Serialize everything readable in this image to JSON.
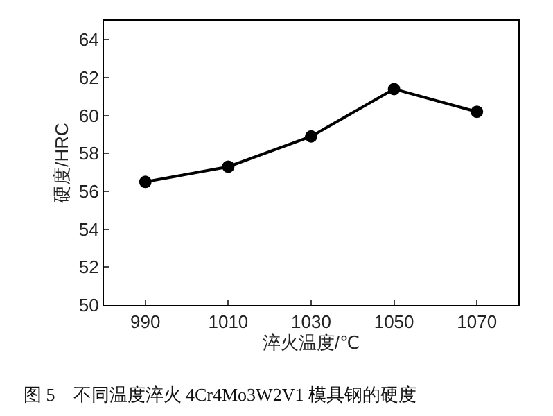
{
  "chart_data": {
    "type": "line",
    "xlabel": "淬火温度/℃",
    "ylabel": "硬度/HRC",
    "x": [
      990,
      1010,
      1030,
      1050,
      1070
    ],
    "series": [
      {
        "color": "#000000",
        "values": [
          56.5,
          57.3,
          58.9,
          61.4,
          60.2
        ]
      }
    ],
    "xlim": [
      980,
      1080
    ],
    "xticks": [
      990,
      1010,
      1030,
      1050,
      1070
    ],
    "ylim": [
      50,
      65
    ],
    "yticks": [
      50,
      52,
      54,
      56,
      58,
      60,
      62,
      64
    ],
    "marker": "circle",
    "line_style": "solid",
    "annotations": [
      "图 5　不同温度淬火 4Cr4Mo3W2V1 模具钢的硬度"
    ]
  }
}
